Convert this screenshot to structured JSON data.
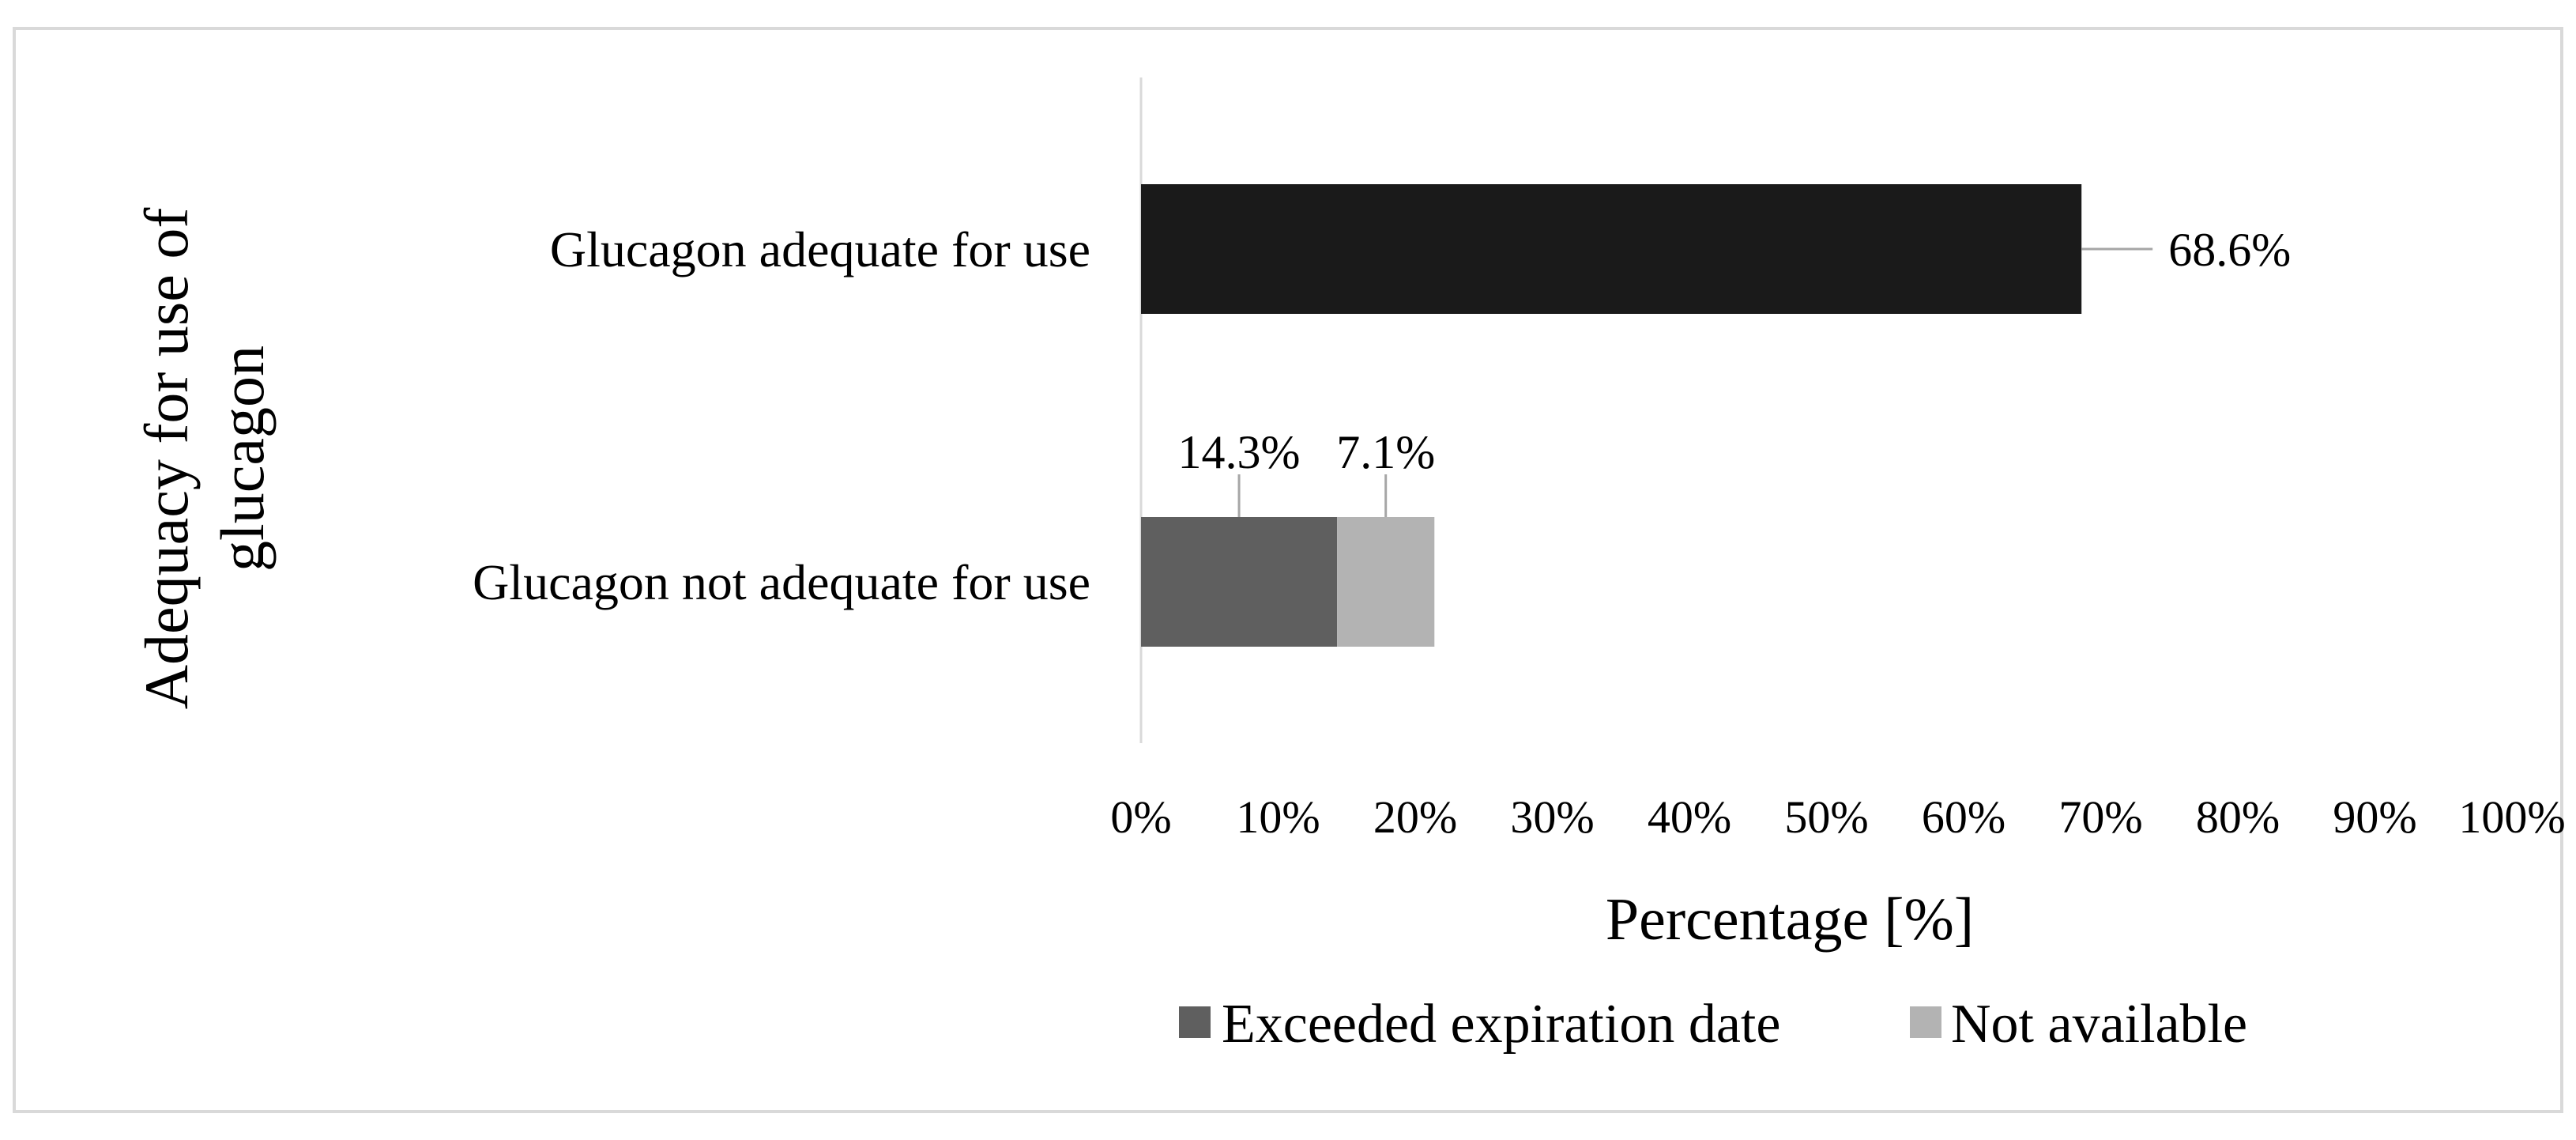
{
  "chart_data": {
    "type": "bar",
    "orientation": "horizontal",
    "stacked": true,
    "categories": [
      "Glucagon adequate for use",
      "Glucagon not adequate for use"
    ],
    "series": [
      {
        "name": "",
        "color": "#1a1a1a",
        "values": [
          68.6,
          null
        ],
        "labels": [
          "68.6%",
          ""
        ]
      },
      {
        "name": "Exceeded expiration date",
        "color": "#5f5f5f",
        "values": [
          null,
          14.3
        ],
        "labels": [
          "",
          "14.3%"
        ]
      },
      {
        "name": "Not available",
        "color": "#b3b3b3",
        "values": [
          null,
          7.1
        ],
        "labels": [
          "",
          "7.1%"
        ]
      }
    ],
    "xlabel": "Percentage  [%]",
    "ylabel_lines": [
      "Adequacy  for use of",
      "glucagon"
    ],
    "xlim": [
      0,
      100
    ],
    "xticks": [
      0,
      10,
      20,
      30,
      40,
      50,
      60,
      70,
      80,
      90,
      100
    ],
    "xtick_labels": [
      "0%",
      "10%",
      "20%",
      "30%",
      "40%",
      "50%",
      "60%",
      "70%",
      "80%",
      "90%",
      "100%"
    ],
    "legend_position": "bottom",
    "legend": [
      {
        "label": "Exceeded expiration date",
        "color": "#5f5f5f"
      },
      {
        "label": "Not available",
        "color": "#b3b3b3"
      }
    ],
    "grid": false
  }
}
